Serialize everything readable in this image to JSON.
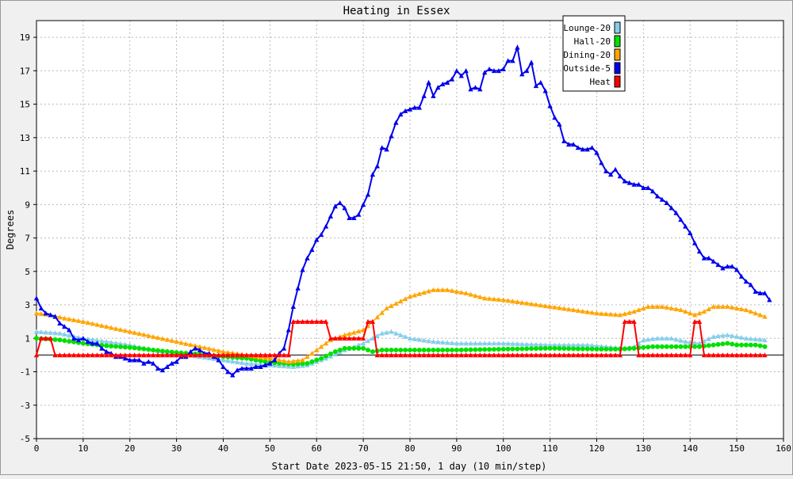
{
  "chart_data": {
    "type": "line",
    "title": "Heating in Essex",
    "xlabel": "Start Date 2023-05-15 21:50, 1 day (10 min/step)",
    "ylabel": "Degrees",
    "xlim": [
      0,
      160
    ],
    "ylim": [
      -5,
      20
    ],
    "x_ticks": [
      "0",
      "10",
      "20",
      "30",
      "40",
      "50",
      "60",
      "70",
      "80",
      "90",
      "100",
      "110",
      "120",
      "130",
      "140",
      "150",
      "160"
    ],
    "y_ticks": [
      "-5",
      "-3",
      "-1",
      "1",
      "3",
      "5",
      "7",
      "9",
      "11",
      "13",
      "15",
      "17",
      "19"
    ],
    "grid": true,
    "legend_position": "top-right",
    "series": [
      {
        "name": "Lounge-20",
        "color": "#87ceeb",
        "marker": "triangle",
        "points": [
          [
            0,
            1.4
          ],
          [
            5,
            1.3
          ],
          [
            10,
            1.0
          ],
          [
            15,
            0.8
          ],
          [
            20,
            0.6
          ],
          [
            25,
            0.3
          ],
          [
            30,
            0.1
          ],
          [
            35,
            -0.1
          ],
          [
            40,
            -0.3
          ],
          [
            45,
            -0.5
          ],
          [
            50,
            -0.6
          ],
          [
            55,
            -0.7
          ],
          [
            58,
            -0.6
          ],
          [
            62,
            -0.2
          ],
          [
            66,
            0.3
          ],
          [
            70,
            0.7
          ],
          [
            72,
            1.0
          ],
          [
            74,
            1.3
          ],
          [
            76,
            1.4
          ],
          [
            80,
            1.0
          ],
          [
            85,
            0.8
          ],
          [
            90,
            0.7
          ],
          [
            100,
            0.7
          ],
          [
            110,
            0.6
          ],
          [
            118,
            0.6
          ],
          [
            122,
            0.5
          ],
          [
            126,
            0.4
          ],
          [
            128,
            0.5
          ],
          [
            130,
            0.9
          ],
          [
            133,
            1.0
          ],
          [
            136,
            1.0
          ],
          [
            139,
            0.8
          ],
          [
            142,
            0.7
          ],
          [
            145,
            1.1
          ],
          [
            148,
            1.2
          ],
          [
            152,
            1.0
          ],
          [
            156,
            0.9
          ]
        ]
      },
      {
        "name": "Hall-20",
        "color": "#00e000",
        "marker": "circle",
        "points": [
          [
            0,
            1.0
          ],
          [
            5,
            0.9
          ],
          [
            10,
            0.7
          ],
          [
            15,
            0.55
          ],
          [
            20,
            0.45
          ],
          [
            25,
            0.3
          ],
          [
            30,
            0.15
          ],
          [
            35,
            0.05
          ],
          [
            40,
            -0.1
          ],
          [
            45,
            -0.2
          ],
          [
            50,
            -0.45
          ],
          [
            55,
            -0.55
          ],
          [
            58,
            -0.5
          ],
          [
            61,
            -0.2
          ],
          [
            64,
            0.2
          ],
          [
            66,
            0.4
          ],
          [
            70,
            0.4
          ],
          [
            72,
            0.2
          ],
          [
            74,
            0.3
          ],
          [
            80,
            0.3
          ],
          [
            90,
            0.3
          ],
          [
            100,
            0.35
          ],
          [
            110,
            0.4
          ],
          [
            120,
            0.35
          ],
          [
            125,
            0.35
          ],
          [
            128,
            0.4
          ],
          [
            132,
            0.5
          ],
          [
            138,
            0.5
          ],
          [
            142,
            0.5
          ],
          [
            145,
            0.6
          ],
          [
            148,
            0.7
          ],
          [
            150,
            0.6
          ],
          [
            154,
            0.6
          ],
          [
            156,
            0.5
          ]
        ]
      },
      {
        "name": "Dining-20",
        "color": "#ffa500",
        "marker": "triangle",
        "points": [
          [
            0,
            2.5
          ],
          [
            3,
            2.4
          ],
          [
            6,
            2.2
          ],
          [
            10,
            2.0
          ],
          [
            15,
            1.7
          ],
          [
            20,
            1.4
          ],
          [
            25,
            1.1
          ],
          [
            30,
            0.8
          ],
          [
            35,
            0.5
          ],
          [
            40,
            0.2
          ],
          [
            45,
            0.0
          ],
          [
            50,
            -0.2
          ],
          [
            54,
            -0.4
          ],
          [
            57,
            -0.3
          ],
          [
            60,
            0.3
          ],
          [
            63,
            0.9
          ],
          [
            66,
            1.2
          ],
          [
            70,
            1.5
          ],
          [
            72,
            2.0
          ],
          [
            75,
            2.8
          ],
          [
            80,
            3.5
          ],
          [
            85,
            3.9
          ],
          [
            88,
            3.9
          ],
          [
            92,
            3.7
          ],
          [
            96,
            3.4
          ],
          [
            100,
            3.3
          ],
          [
            105,
            3.1
          ],
          [
            110,
            2.9
          ],
          [
            115,
            2.7
          ],
          [
            120,
            2.5
          ],
          [
            125,
            2.4
          ],
          [
            128,
            2.6
          ],
          [
            131,
            2.9
          ],
          [
            134,
            2.9
          ],
          [
            138,
            2.7
          ],
          [
            141,
            2.4
          ],
          [
            143,
            2.6
          ],
          [
            145,
            2.9
          ],
          [
            148,
            2.9
          ],
          [
            152,
            2.7
          ],
          [
            156,
            2.3
          ]
        ]
      },
      {
        "name": "Outside-5",
        "color": "#0000ee",
        "marker": "triangle",
        "points": [
          [
            0,
            3.4
          ],
          [
            1,
            2.8
          ],
          [
            2,
            2.5
          ],
          [
            3,
            2.4
          ],
          [
            4,
            2.3
          ],
          [
            5,
            1.9
          ],
          [
            6,
            1.7
          ],
          [
            7,
            1.5
          ],
          [
            8,
            1.0
          ],
          [
            9,
            0.9
          ],
          [
            10,
            1.0
          ],
          [
            11,
            0.8
          ],
          [
            12,
            0.7
          ],
          [
            13,
            0.7
          ],
          [
            14,
            0.4
          ],
          [
            15,
            0.2
          ],
          [
            16,
            0.1
          ],
          [
            17,
            -0.1
          ],
          [
            18,
            -0.1
          ],
          [
            19,
            -0.2
          ],
          [
            20,
            -0.3
          ],
          [
            21,
            -0.3
          ],
          [
            22,
            -0.3
          ],
          [
            23,
            -0.5
          ],
          [
            24,
            -0.4
          ],
          [
            25,
            -0.5
          ],
          [
            26,
            -0.8
          ],
          [
            27,
            -0.9
          ],
          [
            28,
            -0.7
          ],
          [
            29,
            -0.5
          ],
          [
            30,
            -0.4
          ],
          [
            31,
            -0.1
          ],
          [
            32,
            -0.1
          ],
          [
            33,
            0.2
          ],
          [
            34,
            0.4
          ],
          [
            35,
            0.3
          ],
          [
            36,
            0.1
          ],
          [
            37,
            0.1
          ],
          [
            38,
            -0.1
          ],
          [
            39,
            -0.3
          ],
          [
            40,
            -0.7
          ],
          [
            41,
            -1.0
          ],
          [
            42,
            -1.2
          ],
          [
            43,
            -0.9
          ],
          [
            44,
            -0.8
          ],
          [
            45,
            -0.8
          ],
          [
            46,
            -0.8
          ],
          [
            47,
            -0.7
          ],
          [
            48,
            -0.7
          ],
          [
            49,
            -0.6
          ],
          [
            50,
            -0.5
          ],
          [
            51,
            -0.3
          ],
          [
            52,
            0.1
          ],
          [
            53,
            0.4
          ],
          [
            54,
            1.5
          ],
          [
            55,
            2.9
          ],
          [
            56,
            4.0
          ],
          [
            57,
            5.1
          ],
          [
            58,
            5.8
          ],
          [
            59,
            6.3
          ],
          [
            60,
            6.9
          ],
          [
            61,
            7.2
          ],
          [
            62,
            7.7
          ],
          [
            63,
            8.3
          ],
          [
            64,
            8.9
          ],
          [
            65,
            9.1
          ],
          [
            66,
            8.8
          ],
          [
            67,
            8.2
          ],
          [
            68,
            8.2
          ],
          [
            69,
            8.4
          ],
          [
            70,
            9.0
          ],
          [
            71,
            9.6
          ],
          [
            72,
            10.8
          ],
          [
            73,
            11.3
          ],
          [
            74,
            12.4
          ],
          [
            75,
            12.3
          ],
          [
            76,
            13.1
          ],
          [
            77,
            13.9
          ],
          [
            78,
            14.4
          ],
          [
            79,
            14.6
          ],
          [
            80,
            14.7
          ],
          [
            81,
            14.8
          ],
          [
            82,
            14.8
          ],
          [
            83,
            15.5
          ],
          [
            84,
            16.3
          ],
          [
            85,
            15.5
          ],
          [
            86,
            16.0
          ],
          [
            87,
            16.2
          ],
          [
            88,
            16.3
          ],
          [
            89,
            16.5
          ],
          [
            90,
            17.0
          ],
          [
            91,
            16.7
          ],
          [
            92,
            17.0
          ],
          [
            93,
            15.9
          ],
          [
            94,
            16.0
          ],
          [
            95,
            15.9
          ],
          [
            96,
            16.9
          ],
          [
            97,
            17.1
          ],
          [
            98,
            17.0
          ],
          [
            99,
            17.0
          ],
          [
            100,
            17.1
          ],
          [
            101,
            17.6
          ],
          [
            102,
            17.6
          ],
          [
            103,
            18.4
          ],
          [
            104,
            16.8
          ],
          [
            105,
            17.0
          ],
          [
            106,
            17.5
          ],
          [
            107,
            16.1
          ],
          [
            108,
            16.3
          ],
          [
            109,
            15.8
          ],
          [
            110,
            14.9
          ],
          [
            111,
            14.2
          ],
          [
            112,
            13.8
          ],
          [
            113,
            12.8
          ],
          [
            114,
            12.6
          ],
          [
            115,
            12.6
          ],
          [
            116,
            12.4
          ],
          [
            117,
            12.3
          ],
          [
            118,
            12.3
          ],
          [
            119,
            12.4
          ],
          [
            120,
            12.1
          ],
          [
            121,
            11.5
          ],
          [
            122,
            11.0
          ],
          [
            123,
            10.8
          ],
          [
            124,
            11.1
          ],
          [
            125,
            10.7
          ],
          [
            126,
            10.4
          ],
          [
            127,
            10.3
          ],
          [
            128,
            10.2
          ],
          [
            129,
            10.2
          ],
          [
            130,
            10.0
          ],
          [
            131,
            10.0
          ],
          [
            132,
            9.8
          ],
          [
            133,
            9.5
          ],
          [
            134,
            9.3
          ],
          [
            135,
            9.1
          ],
          [
            136,
            8.8
          ],
          [
            137,
            8.5
          ],
          [
            138,
            8.1
          ],
          [
            139,
            7.7
          ],
          [
            140,
            7.3
          ],
          [
            141,
            6.7
          ],
          [
            142,
            6.2
          ],
          [
            143,
            5.8
          ],
          [
            144,
            5.8
          ],
          [
            145,
            5.6
          ],
          [
            146,
            5.4
          ],
          [
            147,
            5.2
          ],
          [
            148,
            5.3
          ],
          [
            149,
            5.3
          ],
          [
            150,
            5.1
          ],
          [
            151,
            4.7
          ],
          [
            152,
            4.4
          ],
          [
            153,
            4.2
          ],
          [
            154,
            3.8
          ],
          [
            155,
            3.7
          ],
          [
            156,
            3.7
          ],
          [
            157,
            3.3
          ]
        ]
      },
      {
        "name": "Heat",
        "color": "#ff0000",
        "marker": "triangle",
        "points": [
          [
            0,
            0
          ],
          [
            1,
            1
          ],
          [
            2,
            1
          ],
          [
            3,
            1
          ],
          [
            4,
            0
          ],
          [
            20,
            0
          ],
          [
            40,
            0
          ],
          [
            54,
            0
          ],
          [
            55,
            2
          ],
          [
            60,
            2
          ],
          [
            62,
            2
          ],
          [
            63,
            1
          ],
          [
            70,
            1
          ],
          [
            71,
            2
          ],
          [
            72,
            2
          ],
          [
            73,
            0
          ],
          [
            90,
            0
          ],
          [
            110,
            0
          ],
          [
            125,
            0
          ],
          [
            126,
            2
          ],
          [
            128,
            2
          ],
          [
            129,
            0
          ],
          [
            140,
            0
          ],
          [
            141,
            2
          ],
          [
            142,
            2
          ],
          [
            143,
            0
          ],
          [
            150,
            0
          ],
          [
            156,
            0
          ]
        ]
      }
    ]
  }
}
